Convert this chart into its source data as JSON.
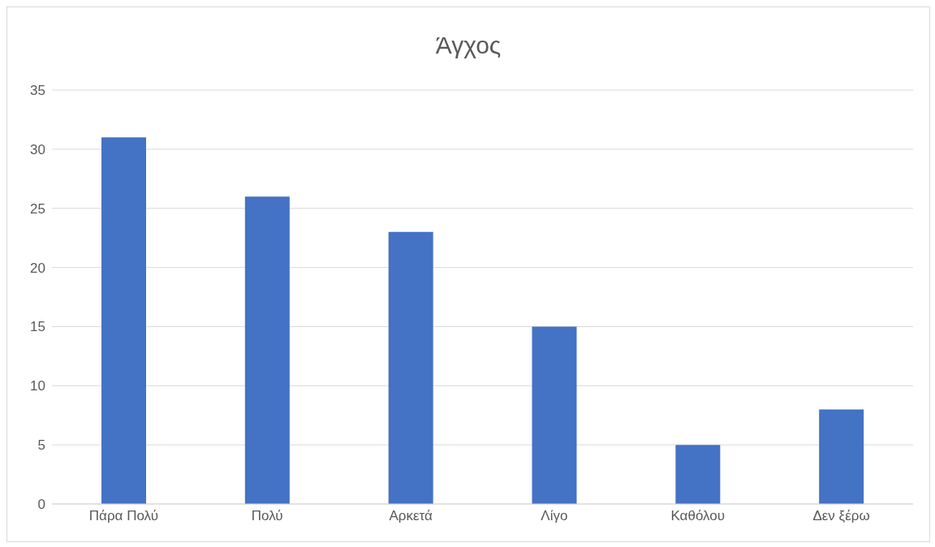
{
  "chart_data": {
    "type": "bar",
    "title": "Άγχος",
    "categories": [
      "Πάρα Πολύ",
      "Πολύ",
      "Αρκετά",
      "Λίγο",
      "Καθόλου",
      "Δεν ξέρω"
    ],
    "values": [
      31,
      26,
      23,
      15,
      5,
      8
    ],
    "color": "#4472c4",
    "ylim": [
      0,
      35
    ],
    "yticks": [
      0,
      5,
      10,
      15,
      20,
      25,
      30,
      35
    ],
    "grid": "y"
  }
}
